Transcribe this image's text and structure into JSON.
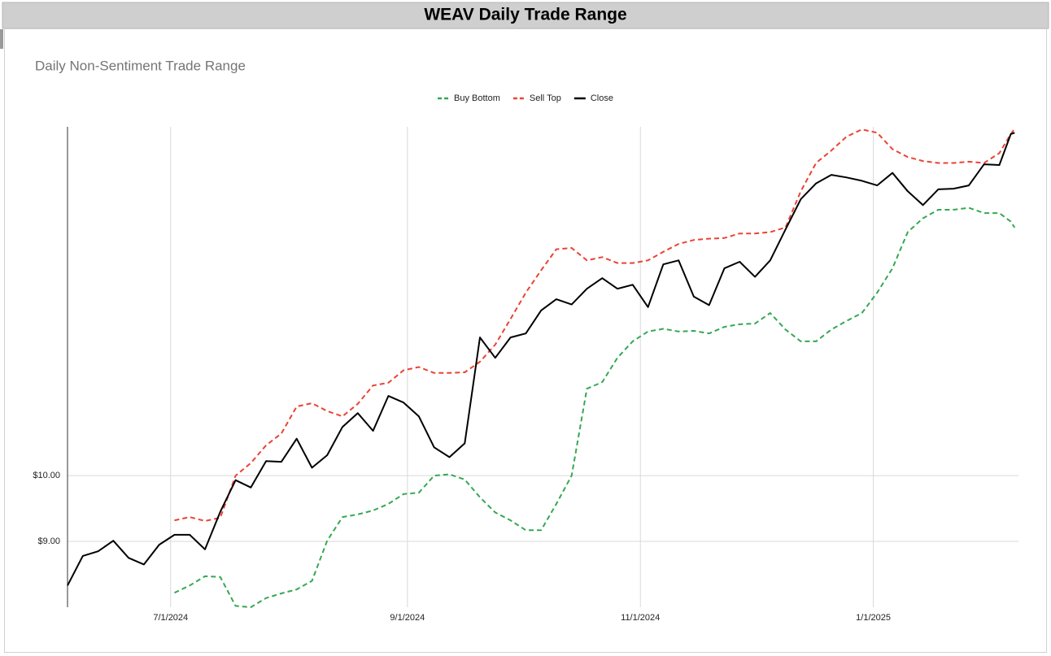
{
  "chart_data": {
    "type": "line",
    "title": "WEAV Daily Trade Range",
    "subtitle": "Daily Non-Sentiment Trade Range",
    "x": [
      "6/4/2024",
      "6/8/2024",
      "6/12/2024",
      "6/16/2024",
      "6/20/2024",
      "6/24/2024",
      "6/28/2024",
      "7/2/2024",
      "7/6/2024",
      "7/10/2024",
      "7/14/2024",
      "7/18/2024",
      "7/22/2024",
      "7/26/2024",
      "7/30/2024",
      "8/3/2024",
      "8/7/2024",
      "8/11/2024",
      "8/15/2024",
      "8/19/2024",
      "8/23/2024",
      "8/27/2024",
      "8/31/2024",
      "9/4/2024",
      "9/8/2024",
      "9/12/2024",
      "9/16/2024",
      "9/20/2024",
      "9/24/2024",
      "9/28/2024",
      "10/2/2024",
      "10/6/2024",
      "10/10/2024",
      "10/14/2024",
      "10/18/2024",
      "10/22/2024",
      "10/26/2024",
      "10/30/2024",
      "11/3/2024",
      "11/7/2024",
      "11/11/2024",
      "11/15/2024",
      "11/19/2024",
      "11/23/2024",
      "11/27/2024",
      "12/1/2024",
      "12/5/2024",
      "12/9/2024",
      "12/13/2024",
      "12/17/2024",
      "12/21/2024",
      "12/25/2024",
      "12/29/2024",
      "1/2/2025",
      "1/6/2025",
      "1/10/2025",
      "1/14/2025",
      "1/18/2025",
      "1/22/2025",
      "1/26/2025",
      "1/30/2025",
      "2/3/2025",
      "2/6/2025",
      "2/7/2025"
    ],
    "series": [
      {
        "name": "Buy Bottom",
        "color": "#34a853",
        "dashed": true,
        "values": [
          null,
          null,
          null,
          null,
          null,
          null,
          null,
          8.22,
          8.33,
          8.47,
          8.46,
          8.02,
          8.0,
          8.14,
          8.21,
          8.27,
          8.4,
          9.01,
          9.37,
          9.41,
          9.47,
          9.57,
          9.72,
          9.74,
          10.0,
          10.02,
          9.94,
          9.67,
          9.44,
          9.32,
          9.17,
          9.17,
          9.57,
          10.0,
          11.32,
          11.42,
          11.79,
          12.04,
          12.19,
          12.23,
          12.19,
          12.2,
          12.16,
          12.26,
          12.3,
          12.31,
          12.47,
          12.22,
          12.04,
          12.04,
          12.22,
          12.35,
          12.47,
          12.78,
          13.15,
          13.7,
          13.91,
          14.04,
          14.04,
          14.07,
          13.99,
          13.99,
          13.86,
          13.77
        ]
      },
      {
        "name": "Sell Top",
        "color": "#ea4335",
        "dashed": true,
        "values": [
          null,
          null,
          null,
          null,
          null,
          null,
          null,
          9.32,
          9.37,
          9.31,
          9.36,
          10.0,
          10.19,
          10.46,
          10.64,
          11.05,
          11.1,
          10.98,
          10.9,
          11.09,
          11.37,
          11.41,
          11.6,
          11.65,
          11.56,
          11.56,
          11.57,
          11.73,
          11.99,
          12.38,
          12.78,
          13.12,
          13.44,
          13.46,
          13.27,
          13.32,
          13.23,
          13.23,
          13.27,
          13.4,
          13.52,
          13.58,
          13.6,
          13.61,
          13.68,
          13.68,
          13.7,
          13.77,
          14.32,
          14.75,
          14.94,
          15.15,
          15.26,
          15.21,
          14.96,
          14.84,
          14.78,
          14.75,
          14.75,
          14.77,
          14.75,
          14.9,
          15.19,
          15.27
        ]
      },
      {
        "name": "Close",
        "color": "#000000",
        "dashed": false,
        "values": [
          8.33,
          8.78,
          8.85,
          9.01,
          8.75,
          8.65,
          8.95,
          9.1,
          9.1,
          8.88,
          9.45,
          9.93,
          9.82,
          10.22,
          10.21,
          10.56,
          10.12,
          10.31,
          10.74,
          10.95,
          10.68,
          11.21,
          11.11,
          10.9,
          10.43,
          10.28,
          10.49,
          12.1,
          11.79,
          12.1,
          12.16,
          12.51,
          12.68,
          12.6,
          12.84,
          13.0,
          12.84,
          12.9,
          12.56,
          13.21,
          13.27,
          12.72,
          12.59,
          13.15,
          13.25,
          13.02,
          13.27,
          13.74,
          14.2,
          14.44,
          14.57,
          14.53,
          14.48,
          14.41,
          14.6,
          14.32,
          14.11,
          14.35,
          14.36,
          14.41,
          14.73,
          14.72,
          15.19,
          15.21
        ]
      }
    ],
    "xlim": [
      "6/4/2024",
      "2/8/2025"
    ],
    "xticks": [
      "7/1/2024",
      "9/1/2024",
      "11/1/2024",
      "1/1/2025"
    ],
    "ylim": [
      8,
      15.3
    ],
    "yticks": [
      {
        "value": 9,
        "label": "$9.00"
      },
      {
        "value": 10,
        "label": "$10.00"
      }
    ],
    "grid": true,
    "legend": "top"
  }
}
